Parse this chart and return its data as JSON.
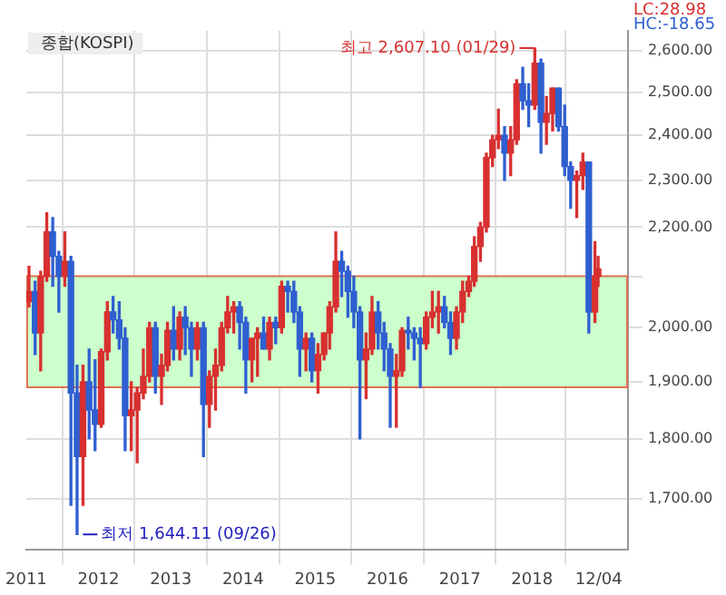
{
  "chart_data": {
    "type": "candlestick",
    "title": "종합(KOSPI)",
    "x": [
      "2011-01-15",
      "2011-02-15",
      "2011-03-15",
      "2011-04-15",
      "2011-05-15",
      "2011-06-15",
      "2011-07-15",
      "2011-08-15",
      "2011-09-15",
      "2011-10-15",
      "2011-11-15",
      "2011-12-15",
      "2012-01-15",
      "2012-02-15",
      "2012-03-15",
      "2012-04-15",
      "2012-05-15",
      "2012-06-15",
      "2012-07-15",
      "2012-08-15",
      "2012-09-15",
      "2012-10-15",
      "2012-11-15",
      "2012-12-15",
      "2013-01-15",
      "2013-02-15",
      "2013-03-15",
      "2013-04-15",
      "2013-05-15",
      "2013-06-15",
      "2013-07-15",
      "2013-08-15",
      "2013-09-15",
      "2013-10-15",
      "2013-11-15",
      "2013-12-15",
      "2014-01-15",
      "2014-02-15",
      "2014-03-15",
      "2014-04-15",
      "2014-05-15",
      "2014-06-15",
      "2014-07-15",
      "2014-08-15",
      "2014-09-15",
      "2014-10-15",
      "2014-11-15",
      "2014-12-15",
      "2015-01-15",
      "2015-02-15",
      "2015-03-15",
      "2015-04-15",
      "2015-05-15",
      "2015-06-15",
      "2015-07-15",
      "2015-08-15",
      "2015-09-15",
      "2015-10-15",
      "2015-11-15",
      "2015-12-15",
      "2016-01-15",
      "2016-02-15",
      "2016-03-15",
      "2016-04-15",
      "2016-05-15",
      "2016-06-15",
      "2016-07-15",
      "2016-08-15",
      "2016-09-15",
      "2016-10-15",
      "2016-11-15",
      "2016-12-15",
      "2017-01-15",
      "2017-02-15",
      "2017-03-15",
      "2017-04-15",
      "2017-05-15",
      "2017-06-15",
      "2017-07-15",
      "2017-08-15",
      "2017-09-15",
      "2017-10-15",
      "2017-11-15",
      "2017-12-15",
      "2018-01-15",
      "2018-02-15",
      "2018-03-15",
      "2018-04-15",
      "2018-05-15",
      "2018-06-15",
      "2018-07-15",
      "2018-08-15",
      "2018-09-15",
      "2018-10-15",
      "2018-11-15",
      "2018-12-01"
    ],
    "ohlc": [
      [
        2050,
        2120,
        2040,
        2070
      ],
      [
        2070,
        2090,
        1950,
        1990
      ],
      [
        1990,
        2110,
        1920,
        2100
      ],
      [
        2100,
        2230,
        2090,
        2190
      ],
      [
        2190,
        2220,
        2080,
        2140
      ],
      [
        2140,
        2150,
        2030,
        2100
      ],
      [
        2100,
        2190,
        2080,
        2130
      ],
      [
        2130,
        2140,
        1690,
        1880
      ],
      [
        1880,
        1930,
        1644.11,
        1770
      ],
      [
        1770,
        1930,
        1690,
        1900
      ],
      [
        1900,
        1960,
        1800,
        1850
      ],
      [
        1850,
        1940,
        1780,
        1825
      ],
      [
        1825,
        1960,
        1820,
        1955
      ],
      [
        1955,
        2050,
        1940,
        2030
      ],
      [
        2030,
        2060,
        1990,
        2015
      ],
      [
        2015,
        2050,
        1960,
        1980
      ],
      [
        1980,
        2000,
        1780,
        1840
      ],
      [
        1840,
        1900,
        1780,
        1850
      ],
      [
        1850,
        1890,
        1760,
        1880
      ],
      [
        1880,
        1960,
        1870,
        1910
      ],
      [
        1910,
        2010,
        1900,
        2000
      ],
      [
        2000,
        2010,
        1880,
        1910
      ],
      [
        1910,
        1950,
        1860,
        1930
      ],
      [
        1930,
        2010,
        1920,
        1995
      ],
      [
        1995,
        2040,
        1940,
        1960
      ],
      [
        1960,
        2030,
        1940,
        2020
      ],
      [
        2020,
        2040,
        1950,
        2000
      ],
      [
        2000,
        2010,
        1910,
        1960
      ],
      [
        1960,
        2010,
        1940,
        2000
      ],
      [
        2000,
        2010,
        1770,
        1860
      ],
      [
        1860,
        1920,
        1820,
        1910
      ],
      [
        1910,
        1960,
        1850,
        1930
      ],
      [
        1930,
        2010,
        1920,
        2000
      ],
      [
        2000,
        2060,
        1990,
        2030
      ],
      [
        2030,
        2050,
        1990,
        2040
      ],
      [
        2040,
        2050,
        1960,
        2010
      ],
      [
        2010,
        2020,
        1880,
        1940
      ],
      [
        1940,
        1980,
        1900,
        1980
      ],
      [
        1980,
        2000,
        1910,
        1990
      ],
      [
        1990,
        2020,
        1960,
        1960
      ],
      [
        1960,
        2020,
        1940,
        2010
      ],
      [
        2010,
        2020,
        1970,
        2000
      ],
      [
        2000,
        2090,
        1990,
        2080
      ],
      [
        2080,
        2090,
        2030,
        2070
      ],
      [
        2070,
        2090,
        2010,
        2030
      ],
      [
        2030,
        2040,
        1910,
        1960
      ],
      [
        1960,
        1990,
        1920,
        1980
      ],
      [
        1980,
        1990,
        1900,
        1920
      ],
      [
        1920,
        1970,
        1880,
        1950
      ],
      [
        1950,
        1990,
        1940,
        1990
      ],
      [
        1990,
        2050,
        1960,
        2040
      ],
      [
        2040,
        2190,
        2030,
        2130
      ],
      [
        2130,
        2150,
        2060,
        2110
      ],
      [
        2110,
        2120,
        2020,
        2070
      ],
      [
        2070,
        2100,
        2000,
        2030
      ],
      [
        2030,
        2040,
        1800,
        1940
      ],
      [
        1940,
        1990,
        1870,
        1960
      ],
      [
        1960,
        2060,
        1950,
        2030
      ],
      [
        2030,
        2050,
        1960,
        1990
      ],
      [
        1990,
        2010,
        1920,
        1960
      ],
      [
        1960,
        1970,
        1820,
        1910
      ],
      [
        1910,
        1950,
        1820,
        1920
      ],
      [
        1920,
        2000,
        1910,
        1995
      ],
      [
        1995,
        2020,
        1960,
        1990
      ],
      [
        1990,
        2000,
        1940,
        1980
      ],
      [
        1980,
        2000,
        1890,
        1970
      ],
      [
        1970,
        2030,
        1960,
        2020
      ],
      [
        2020,
        2070,
        2000,
        2030
      ],
      [
        2030,
        2070,
        1990,
        2040
      ],
      [
        2040,
        2060,
        2000,
        2010
      ],
      [
        2010,
        2030,
        1950,
        1980
      ],
      [
        1980,
        2040,
        1960,
        2030
      ],
      [
        2030,
        2090,
        2010,
        2070
      ],
      [
        2070,
        2100,
        2060,
        2090
      ],
      [
        2090,
        2180,
        2080,
        2160
      ],
      [
        2160,
        2210,
        2130,
        2200
      ],
      [
        2200,
        2360,
        2190,
        2350
      ],
      [
        2350,
        2400,
        2330,
        2390
      ],
      [
        2390,
        2460,
        2370,
        2400
      ],
      [
        2400,
        2420,
        2300,
        2360
      ],
      [
        2360,
        2420,
        2310,
        2390
      ],
      [
        2390,
        2530,
        2380,
        2520
      ],
      [
        2520,
        2560,
        2460,
        2480
      ],
      [
        2480,
        2520,
        2420,
        2470
      ],
      [
        2470,
        2607.1,
        2460,
        2570
      ],
      [
        2570,
        2580,
        2360,
        2430
      ],
      [
        2430,
        2490,
        2380,
        2450
      ],
      [
        2450,
        2510,
        2410,
        2510
      ],
      [
        2510,
        2510,
        2410,
        2420
      ],
      [
        2420,
        2470,
        2310,
        2330
      ],
      [
        2330,
        2340,
        2240,
        2300
      ],
      [
        2300,
        2320,
        2220,
        2310
      ],
      [
        2310,
        2360,
        2280,
        2340
      ],
      [
        2340,
        2340,
        1990,
        2030
      ],
      [
        2030,
        2170,
        2010,
        2100
      ],
      [
        2100,
        2140,
        2080,
        2114.35
      ]
    ],
    "log": true,
    "ylim": [
      1620,
      2650
    ],
    "yticks": [
      {
        "value": 1700,
        "label": "1,700.00"
      },
      {
        "value": 1800,
        "label": "1,800.00"
      },
      {
        "value": 1900,
        "label": "1,900.00"
      },
      {
        "value": 2000,
        "label": "2,000.00"
      },
      {
        "value": 2100,
        "label": null
      },
      {
        "value": 2200,
        "label": "2,200.00"
      },
      {
        "value": 2300,
        "label": "2,300.00"
      },
      {
        "value": 2400,
        "label": "2,400.00"
      },
      {
        "value": 2500,
        "label": "2,500.00"
      },
      {
        "value": 2600,
        "label": "2,600.00"
      }
    ],
    "xlim": [
      "2011-01-01",
      "2019-05-01"
    ],
    "xticks": [
      {
        "value": "2011-01-01",
        "label": "2011"
      },
      {
        "value": "2012-01-01",
        "label": "2012"
      },
      {
        "value": "2013-01-01",
        "label": "2013"
      },
      {
        "value": "2014-01-01",
        "label": "2014"
      },
      {
        "value": "2015-01-01",
        "label": "2015"
      },
      {
        "value": "2016-01-01",
        "label": "2016"
      },
      {
        "value": "2017-01-01",
        "label": "2017"
      },
      {
        "value": "2018-01-01",
        "label": "2018"
      },
      {
        "value": "2018-12-04",
        "label": "12/04"
      }
    ],
    "grid": true,
    "bands": [
      {
        "axis": "y",
        "from": 1890,
        "to": 2100,
        "color": "#ccffcc"
      }
    ],
    "annotations": [
      "LC:28.98",
      "HC:-18.65",
      {
        "text": "최고 2,607.10 (01/29)",
        "x": "2018-01-29",
        "y": 2607.1
      },
      {
        "text": "최저 1,644.11 (09/26)",
        "x": "2011-09-26",
        "y": 1644.11
      }
    ]
  }
}
